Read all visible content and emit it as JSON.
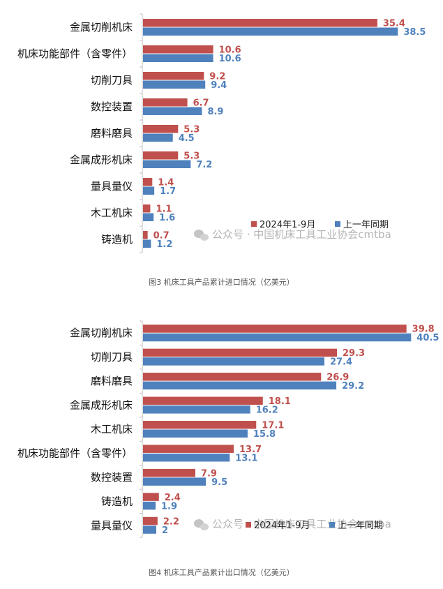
{
  "colors": {
    "current": "#c0504d",
    "previous": "#4f81bd"
  },
  "watermark": "公众号 · 中国机床工具工业协会cmtba",
  "chart_data": [
    {
      "type": "bar",
      "orientation": "horizontal",
      "caption": "图3  机床工具产品累计进口情况（亿美元）",
      "categories": [
        "金属切削机床",
        "机床功能部件（含零件）",
        "切削刀具",
        "数控装置",
        "磨料磨具",
        "金属成形机床",
        "量具量仪",
        "木工机床",
        "铸造机"
      ],
      "series": [
        {
          "name": "2024年1-9月",
          "values": [
            35.4,
            10.6,
            9.2,
            6.7,
            5.3,
            5.3,
            1.4,
            1.1,
            0.7
          ]
        },
        {
          "name": "上一年同期",
          "values": [
            38.5,
            10.6,
            9.4,
            8.9,
            4.5,
            7.2,
            1.7,
            1.6,
            1.2
          ]
        }
      ],
      "xlim": [
        0,
        45
      ],
      "legend": "bottom-right",
      "grid": false
    },
    {
      "type": "bar",
      "orientation": "horizontal",
      "caption": "图4  机床工具产品累计出口情况（亿美元）",
      "categories": [
        "金属切削机床",
        "切削刀具",
        "磨料磨具",
        "金属成形机床",
        "木工机床",
        "机床功能部件（含零件）",
        "数控装置",
        "铸造机",
        "量具量仪"
      ],
      "series": [
        {
          "name": "2024年1-9月",
          "values": [
            39.8,
            29.3,
            26.9,
            18.1,
            17.1,
            13.7,
            7.9,
            2.4,
            2.2
          ]
        },
        {
          "name": "上一年同期",
          "values": [
            40.5,
            27.4,
            29.2,
            16.2,
            15.8,
            13.1,
            9.5,
            1.9,
            2.0
          ]
        }
      ],
      "xlim": [
        0,
        45
      ],
      "legend": "bottom-right",
      "grid": false
    }
  ]
}
